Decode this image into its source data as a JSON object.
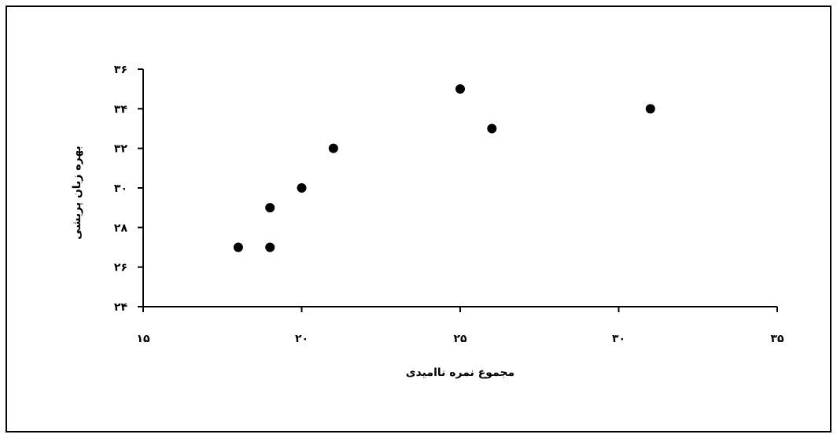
{
  "chart_data": {
    "type": "scatter",
    "title": "",
    "xlabel": "مجموع نمره ناامیدی",
    "ylabel": "بهره زبان پریشی",
    "xlim": [
      15,
      35
    ],
    "ylim": [
      24,
      36
    ],
    "x_ticks": [
      15,
      20,
      25,
      30,
      35
    ],
    "y_ticks": [
      24,
      26,
      28,
      30,
      32,
      34,
      36
    ],
    "x_tick_labels": [
      "۱۵",
      "۲۰",
      "۲۵",
      "۳۰",
      "۳۵"
    ],
    "y_tick_labels": [
      "۲۴",
      "۲۶",
      "۲۸",
      "۳۰",
      "۳۲",
      "۳۴",
      "۳۶"
    ],
    "grid": false,
    "legend": "none",
    "marker_color": "#000000",
    "points": [
      {
        "x": 18,
        "y": 27
      },
      {
        "x": 19,
        "y": 27
      },
      {
        "x": 19,
        "y": 29
      },
      {
        "x": 20,
        "y": 30
      },
      {
        "x": 21,
        "y": 32
      },
      {
        "x": 25,
        "y": 35
      },
      {
        "x": 26,
        "y": 33
      },
      {
        "x": 31,
        "y": 34
      }
    ]
  }
}
